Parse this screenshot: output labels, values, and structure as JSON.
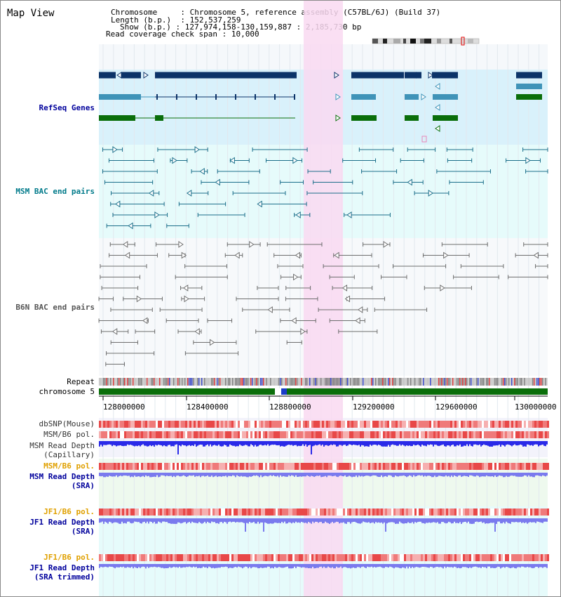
{
  "view_title": "Map View",
  "header": {
    "chromosome_key": "Chromosome",
    "chromosome_value": "Chromosome 5, reference assembly (C57BL/6J) (Build 37)",
    "length_key": "Length (b.p.)",
    "length_value": "152,537,259",
    "show_key": "Show (b.p.)",
    "show_value": "127,974,158-130,159,887 : 2,185,730 bp",
    "coverage_key": "Read coverage check span",
    "coverage_value": "10,000"
  },
  "tracks": {
    "refseq": "RefSeq Genes",
    "msm_bac": "MSM BAC end pairs",
    "b6n_bac": "B6N BAC end pairs",
    "repeat": "Repeat",
    "chromosome": "chromosome 5",
    "dbsnp": "dbSNP(Mouse)",
    "msm_b6_pol_1": "MSM/B6 pol.",
    "msm_read_depth_cap_1": "MSM Read Depth",
    "msm_read_depth_cap_2": "(Capillary)",
    "msm_b6_pol_2": "MSM/B6 pol.",
    "msm_read_depth_sra_1": "MSM Read Depth",
    "msm_read_depth_sra_2": "(SRA)",
    "jf1_b6_pol_1": "JF1/B6 pol.",
    "jf1_read_depth_sra_1": "JF1 Read Depth",
    "jf1_read_depth_sra_2": "(SRA)",
    "jf1_b6_pol_2": "JF1/B6 pol.",
    "jf1_read_depth_trim_1": "JF1 Read Depth",
    "jf1_read_depth_trim_2": "(SRA trimmed)"
  },
  "axis_ticks": [
    "128000000",
    "128400000",
    "128800000",
    "129200000",
    "129600000",
    "130000000"
  ],
  "colors": {
    "highlight": "#f9d9f1",
    "refseq_bg": "#d9f1fb",
    "lane_bg": "#e6fbfb",
    "refseq_dark": "#0c3368",
    "refseq_mid": "#3f93b8",
    "refseq_green": "#0a6e0a",
    "bac_msm": "#1b6e8a",
    "bac_b6n": "#6e6e6e",
    "chrom_green": "#0a6e0a",
    "depth_blue": "#2a2ae8",
    "depth_light": "#7a7aee",
    "pol_red": "#e84848",
    "label_orange": "#e0a000",
    "label_blue": "#00009c",
    "label_teal": "#007a8a"
  }
}
